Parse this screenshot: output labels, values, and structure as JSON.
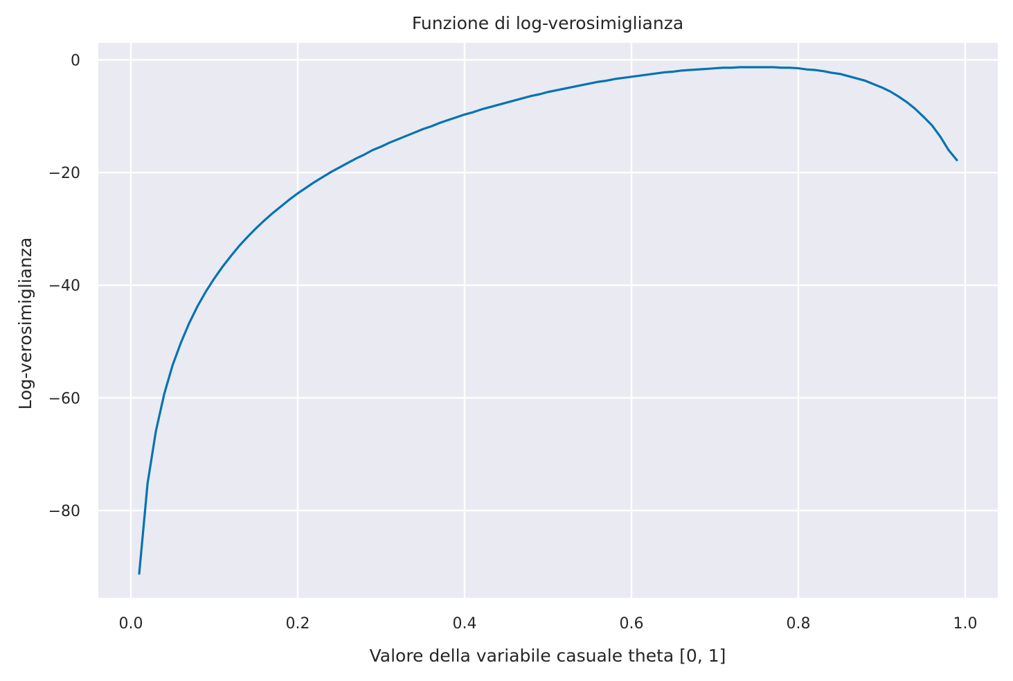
{
  "chart_data": {
    "type": "line",
    "title": "Funzione di log-verosimiglianza",
    "xlabel": "Valore della variabile casuale theta [0, 1]",
    "ylabel": "Log-verosimiglianza",
    "xlim": [
      -0.039,
      1.039
    ],
    "ylim": [
      -95.5,
      3.0
    ],
    "xticks": [
      0.0,
      0.2,
      0.4,
      0.6,
      0.8,
      1.0
    ],
    "xtick_labels": [
      "0.0",
      "0.2",
      "0.4",
      "0.6",
      "0.8",
      "1.0"
    ],
    "yticks": [
      0,
      -20,
      -40,
      -60,
      -80
    ],
    "ytick_labels": [
      "0",
      "−20",
      "−40",
      "−60",
      "−80"
    ],
    "grid": true,
    "colors": {
      "background": "#EAEAF2",
      "grid": "#FFFFFF",
      "line": "#0173B2",
      "text": "#262626"
    },
    "series": [
      {
        "x": [
          0.01,
          0.02,
          0.03,
          0.04,
          0.05,
          0.06,
          0.07,
          0.08,
          0.09,
          0.1,
          0.11,
          0.12,
          0.13,
          0.14,
          0.15,
          0.16,
          0.17,
          0.18,
          0.19,
          0.2,
          0.21,
          0.22,
          0.23,
          0.24,
          0.25,
          0.26,
          0.27,
          0.28,
          0.29,
          0.3,
          0.31,
          0.32,
          0.33,
          0.34,
          0.35,
          0.36,
          0.37,
          0.38,
          0.39,
          0.4,
          0.41,
          0.42,
          0.43,
          0.44,
          0.45,
          0.46,
          0.47,
          0.48,
          0.49,
          0.5,
          0.51,
          0.52,
          0.53,
          0.54,
          0.55,
          0.56,
          0.57,
          0.58,
          0.59,
          0.6,
          0.61,
          0.62,
          0.63,
          0.64,
          0.65,
          0.66,
          0.67,
          0.68,
          0.69,
          0.7,
          0.71,
          0.72,
          0.73,
          0.74,
          0.75,
          0.76,
          0.77,
          0.78,
          0.79,
          0.8,
          0.81,
          0.82,
          0.83,
          0.84,
          0.85,
          0.86,
          0.87,
          0.88,
          0.89,
          0.9,
          0.91,
          0.92,
          0.93,
          0.94,
          0.95,
          0.96,
          0.97,
          0.98,
          0.99
        ],
        "y": [
          -91.2,
          -75.2,
          -65.9,
          -59.3,
          -54.2,
          -50.2,
          -46.7,
          -43.7,
          -41.1,
          -38.8,
          -36.7,
          -34.8,
          -33.0,
          -31.4,
          -29.9,
          -28.5,
          -27.2,
          -26.0,
          -24.8,
          -23.7,
          -22.7,
          -21.7,
          -20.8,
          -19.9,
          -19.1,
          -18.3,
          -17.5,
          -16.8,
          -16.0,
          -15.4,
          -14.7,
          -14.1,
          -13.5,
          -12.9,
          -12.3,
          -11.8,
          -11.2,
          -10.7,
          -10.2,
          -9.7,
          -9.3,
          -8.8,
          -8.4,
          -8.0,
          -7.6,
          -7.2,
          -6.8,
          -6.4,
          -6.1,
          -5.7,
          -5.4,
          -5.1,
          -4.8,
          -4.5,
          -4.2,
          -3.9,
          -3.7,
          -3.4,
          -3.2,
          -3.0,
          -2.8,
          -2.6,
          -2.4,
          -2.2,
          -2.1,
          -1.9,
          -1.8,
          -1.7,
          -1.6,
          -1.5,
          -1.4,
          -1.4,
          -1.3,
          -1.3,
          -1.3,
          -1.3,
          -1.3,
          -1.4,
          -1.4,
          -1.5,
          -1.7,
          -1.8,
          -2.0,
          -2.3,
          -2.5,
          -2.9,
          -3.3,
          -3.7,
          -4.3,
          -4.9,
          -5.6,
          -6.5,
          -7.5,
          -8.7,
          -10.1,
          -11.6,
          -13.6,
          -16.0,
          -17.8
        ]
      }
    ]
  }
}
